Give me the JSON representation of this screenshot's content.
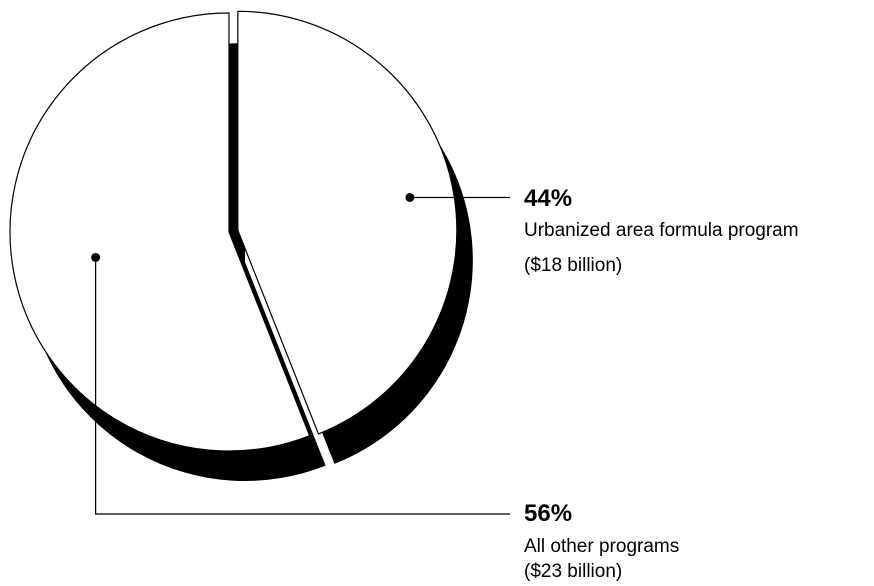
{
  "chart_data": {
    "type": "pie",
    "title": "",
    "slices": [
      {
        "label": "Urbanized area formula program",
        "percent": "44%",
        "value": 44,
        "amount": "($18 billion)"
      },
      {
        "label": "All other programs",
        "percent": "56%",
        "value": 56,
        "amount": "($23 billion)"
      }
    ],
    "style": {
      "fill": "#ffffff",
      "stroke": "#000000",
      "shadow": "#000000"
    }
  }
}
